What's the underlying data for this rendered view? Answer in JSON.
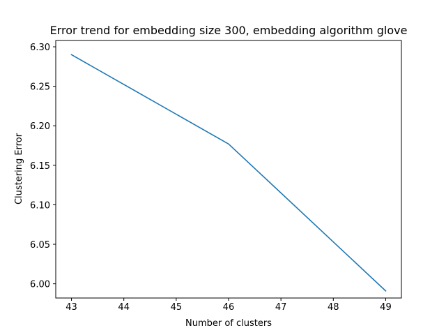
{
  "chart_data": {
    "type": "line",
    "title": "Error trend for embedding size 300, embedding algorithm glove",
    "xlabel": "Number of clusters",
    "ylabel": "Clustering Error",
    "xlim": [
      42.7,
      49.3
    ],
    "ylim": [
      5.982,
      6.308
    ],
    "xticks": [
      43,
      44,
      45,
      46,
      47,
      48,
      49
    ],
    "yticks": [
      6.0,
      6.05,
      6.1,
      6.15,
      6.2,
      6.25,
      6.3
    ],
    "xtick_labels": [
      "43",
      "44",
      "45",
      "46",
      "47",
      "48",
      "49"
    ],
    "ytick_labels": [
      "6.00",
      "6.05",
      "6.10",
      "6.15",
      "6.20",
      "6.25",
      "6.30"
    ],
    "grid": false,
    "legend": "none",
    "series": [
      {
        "color": "#1f77b4",
        "x": [
          43,
          46,
          49
        ],
        "y": [
          6.29,
          6.177,
          5.991
        ]
      }
    ]
  }
}
